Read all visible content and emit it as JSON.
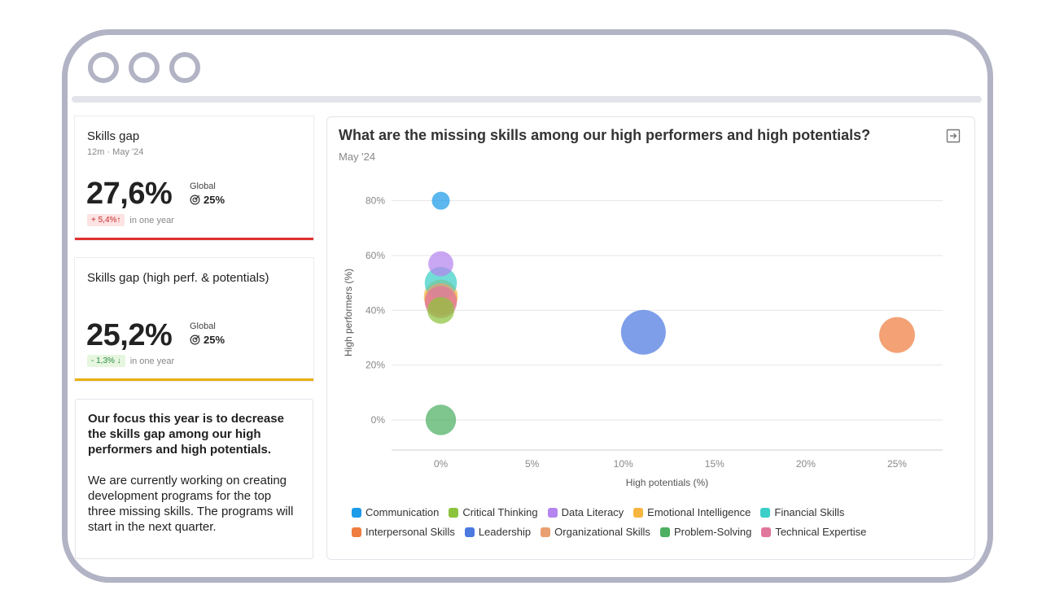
{
  "kpi1": {
    "title": "Skills gap",
    "subtitle": "12m · May '24",
    "value": "27,6%",
    "global_label": "Global",
    "target": "25%",
    "delta": "+ 5,4%↑",
    "delta_caption": "in one year",
    "accent": "#e03131"
  },
  "kpi2": {
    "title": "Skills gap (high perf. & potentials)",
    "value": "25,2%",
    "global_label": "Global",
    "target": "25%",
    "delta": "- 1,3% ↓",
    "delta_caption": "in one year",
    "accent": "#e8b00c"
  },
  "note": {
    "headline": "Our focus this year is to decrease the skills gap among our high performers and high potentials.",
    "body": "We are currently working on creating development programs for the top three missing skills. The programs will start in the next quarter."
  },
  "chart_panel": {
    "title": "What are the missing skills among our high performers and high potentials?",
    "date": "May '24",
    "export_icon": "export-icon"
  },
  "chart_data": {
    "type": "scatter",
    "xlabel": "High potentials (%)",
    "ylabel": "High performers (%)",
    "xlim": [
      -2.7,
      27.5
    ],
    "ylim": [
      -11,
      90
    ],
    "x_ticks": [
      0,
      5,
      10,
      15,
      20,
      25
    ],
    "x_tick_labels": [
      "0%",
      "5%",
      "10%",
      "15%",
      "20%",
      "25%"
    ],
    "y_ticks": [
      0,
      20,
      40,
      60,
      80
    ],
    "y_tick_labels": [
      "0%",
      "20%",
      "40%",
      "60%",
      "80%"
    ],
    "grid": true,
    "legend_position": "bottom",
    "series": [
      {
        "name": "Communication",
        "color": "#1c9be8",
        "x": 0,
        "y": 80,
        "size": 1
      },
      {
        "name": "Critical Thinking",
        "color": "#8cc33d",
        "x": 0,
        "y": 40,
        "size": 1.5
      },
      {
        "name": "Data Literacy",
        "color": "#b585ef",
        "x": 0,
        "y": 57,
        "size": 1.4
      },
      {
        "name": "Emotional Intelligence",
        "color": "#f6b53f",
        "x": 0,
        "y": 45,
        "size": 1.9
      },
      {
        "name": "Financial Skills",
        "color": "#3ccfc7",
        "x": 0,
        "y": 50,
        "size": 1.8
      },
      {
        "name": "Interpersonal Skills",
        "color": "#ef7d40",
        "x": 25,
        "y": 31,
        "size": 2.0
      },
      {
        "name": "Leadership",
        "color": "#4c79e0",
        "x": 11.1,
        "y": 32,
        "size": 2.5
      },
      {
        "name": "Organizational Skills",
        "color": "#e9a070",
        "x": 0,
        "y": 44,
        "size": 1.8
      },
      {
        "name": "Problem-Solving",
        "color": "#4caf62",
        "x": 0,
        "y": 0,
        "size": 1.7
      },
      {
        "name": "Technical Expertise",
        "color": "#e0769b",
        "x": 0,
        "y": 43,
        "size": 1.8
      }
    ]
  }
}
